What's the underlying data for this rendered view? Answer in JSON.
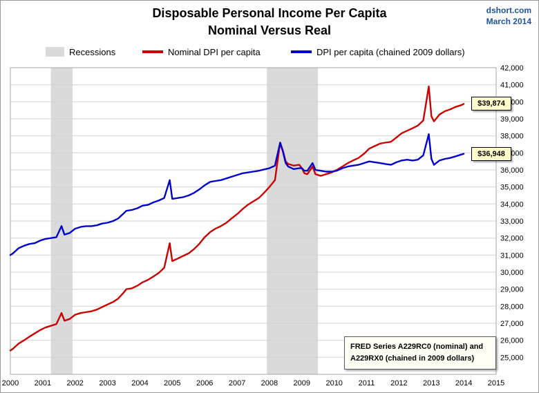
{
  "header": {
    "title_line1": "Disposable Personal Income Per Capita",
    "title_line2": "Nominal Versus Real",
    "source": "dshort.com",
    "date": "March 2014"
  },
  "legend": {
    "recessions_label": "Recessions",
    "nominal_label": "Nominal DPI per capita",
    "real_label": "DPI per capita (chained 2009 dollars)"
  },
  "annotation": {
    "line1": "FRED Series A229RC0 (nominal) and",
    "line2": "A229RX0 (chained in 2009 dollars)"
  },
  "colors": {
    "nominal_red": "#CC0000",
    "real_blue": "#0000CC",
    "recession": "#DADADA",
    "grid": "#D2D2D2",
    "plot_border": "#A6A6A6",
    "callout_bg": "#FFFFCC",
    "credit_blue": "#2152A3"
  },
  "chart_data": {
    "type": "line",
    "title": "Disposable Personal Income Per Capita — Nominal Versus Real",
    "xlabel": "",
    "ylabel": "",
    "xlim": [
      2000,
      2015
    ],
    "ylim": [
      24000,
      42000
    ],
    "x_ticks": [
      2000,
      2001,
      2002,
      2003,
      2004,
      2005,
      2006,
      2007,
      2008,
      2009,
      2010,
      2011,
      2012,
      2013,
      2014,
      2015
    ],
    "y_ticks": [
      25000,
      26000,
      27000,
      28000,
      29000,
      30000,
      31000,
      32000,
      33000,
      34000,
      35000,
      36000,
      37000,
      38000,
      39000,
      40000,
      41000,
      42000
    ],
    "grid": true,
    "legend_position": "top",
    "y_axis_side": "right",
    "recessions": [
      [
        2001.25,
        2001.92
      ],
      [
        2007.92,
        2009.5
      ]
    ],
    "series": [
      {
        "name": "Nominal DPI per capita",
        "color": "#CC0000",
        "callout": {
          "text": "$39,874",
          "value": 39874
        },
        "points": [
          [
            2000.0,
            25400
          ],
          [
            2000.08,
            25500
          ],
          [
            2000.25,
            25800
          ],
          [
            2000.42,
            26000
          ],
          [
            2000.58,
            26200
          ],
          [
            2000.75,
            26400
          ],
          [
            2000.92,
            26600
          ],
          [
            2001.08,
            26750
          ],
          [
            2001.25,
            26850
          ],
          [
            2001.42,
            26950
          ],
          [
            2001.58,
            27600
          ],
          [
            2001.67,
            27150
          ],
          [
            2001.83,
            27250
          ],
          [
            2002.0,
            27500
          ],
          [
            2002.17,
            27600
          ],
          [
            2002.33,
            27650
          ],
          [
            2002.5,
            27700
          ],
          [
            2002.67,
            27800
          ],
          [
            2002.83,
            27950
          ],
          [
            2003.0,
            28100
          ],
          [
            2003.17,
            28250
          ],
          [
            2003.33,
            28450
          ],
          [
            2003.5,
            28800
          ],
          [
            2003.58,
            29000
          ],
          [
            2003.75,
            29050
          ],
          [
            2003.92,
            29200
          ],
          [
            2004.08,
            29400
          ],
          [
            2004.25,
            29550
          ],
          [
            2004.42,
            29750
          ],
          [
            2004.58,
            29950
          ],
          [
            2004.75,
            30250
          ],
          [
            2004.92,
            31700
          ],
          [
            2005.0,
            30650
          ],
          [
            2005.17,
            30800
          ],
          [
            2005.33,
            30950
          ],
          [
            2005.5,
            31100
          ],
          [
            2005.67,
            31350
          ],
          [
            2005.83,
            31650
          ],
          [
            2006.0,
            32050
          ],
          [
            2006.17,
            32350
          ],
          [
            2006.33,
            32550
          ],
          [
            2006.5,
            32700
          ],
          [
            2006.67,
            32900
          ],
          [
            2006.83,
            33150
          ],
          [
            2007.0,
            33400
          ],
          [
            2007.17,
            33700
          ],
          [
            2007.33,
            33950
          ],
          [
            2007.5,
            34150
          ],
          [
            2007.67,
            34350
          ],
          [
            2007.83,
            34650
          ],
          [
            2008.0,
            35000
          ],
          [
            2008.17,
            35400
          ],
          [
            2008.33,
            37600
          ],
          [
            2008.42,
            37100
          ],
          [
            2008.5,
            36500
          ],
          [
            2008.58,
            36350
          ],
          [
            2008.75,
            36250
          ],
          [
            2008.92,
            36300
          ],
          [
            2009.0,
            36100
          ],
          [
            2009.08,
            35800
          ],
          [
            2009.17,
            35750
          ],
          [
            2009.33,
            36200
          ],
          [
            2009.42,
            35750
          ],
          [
            2009.58,
            35650
          ],
          [
            2009.75,
            35750
          ],
          [
            2009.92,
            35850
          ],
          [
            2010.08,
            36000
          ],
          [
            2010.25,
            36200
          ],
          [
            2010.42,
            36400
          ],
          [
            2010.58,
            36550
          ],
          [
            2010.75,
            36700
          ],
          [
            2010.92,
            36950
          ],
          [
            2011.08,
            37250
          ],
          [
            2011.25,
            37400
          ],
          [
            2011.42,
            37550
          ],
          [
            2011.58,
            37600
          ],
          [
            2011.75,
            37650
          ],
          [
            2011.92,
            37900
          ],
          [
            2012.08,
            38150
          ],
          [
            2012.25,
            38300
          ],
          [
            2012.42,
            38450
          ],
          [
            2012.58,
            38600
          ],
          [
            2012.75,
            38900
          ],
          [
            2012.92,
            40900
          ],
          [
            2013.0,
            39150
          ],
          [
            2013.08,
            38850
          ],
          [
            2013.25,
            39250
          ],
          [
            2013.42,
            39450
          ],
          [
            2013.58,
            39550
          ],
          [
            2013.75,
            39700
          ],
          [
            2013.92,
            39800
          ],
          [
            2014.0,
            39874
          ]
        ]
      },
      {
        "name": "DPI per capita (chained 2009 dollars)",
        "color": "#0000CC",
        "callout": {
          "text": "$36,948",
          "value": 36948
        },
        "points": [
          [
            2000.0,
            31000
          ],
          [
            2000.08,
            31100
          ],
          [
            2000.25,
            31400
          ],
          [
            2000.42,
            31550
          ],
          [
            2000.58,
            31650
          ],
          [
            2000.75,
            31700
          ],
          [
            2000.92,
            31850
          ],
          [
            2001.08,
            31950
          ],
          [
            2001.25,
            32000
          ],
          [
            2001.42,
            32050
          ],
          [
            2001.58,
            32700
          ],
          [
            2001.67,
            32200
          ],
          [
            2001.83,
            32300
          ],
          [
            2002.0,
            32550
          ],
          [
            2002.17,
            32650
          ],
          [
            2002.33,
            32700
          ],
          [
            2002.5,
            32700
          ],
          [
            2002.67,
            32750
          ],
          [
            2002.83,
            32850
          ],
          [
            2003.0,
            32900
          ],
          [
            2003.17,
            33000
          ],
          [
            2003.33,
            33150
          ],
          [
            2003.5,
            33450
          ],
          [
            2003.58,
            33600
          ],
          [
            2003.75,
            33650
          ],
          [
            2003.92,
            33750
          ],
          [
            2004.08,
            33900
          ],
          [
            2004.25,
            33950
          ],
          [
            2004.42,
            34100
          ],
          [
            2004.58,
            34200
          ],
          [
            2004.75,
            34350
          ],
          [
            2004.92,
            35400
          ],
          [
            2005.0,
            34300
          ],
          [
            2005.17,
            34350
          ],
          [
            2005.33,
            34400
          ],
          [
            2005.5,
            34500
          ],
          [
            2005.67,
            34650
          ],
          [
            2005.83,
            34850
          ],
          [
            2006.0,
            35100
          ],
          [
            2006.17,
            35300
          ],
          [
            2006.33,
            35350
          ],
          [
            2006.5,
            35400
          ],
          [
            2006.67,
            35500
          ],
          [
            2006.83,
            35600
          ],
          [
            2007.0,
            35700
          ],
          [
            2007.17,
            35800
          ],
          [
            2007.33,
            35850
          ],
          [
            2007.5,
            35900
          ],
          [
            2007.67,
            35950
          ],
          [
            2008.0,
            36100
          ],
          [
            2008.17,
            36250
          ],
          [
            2008.33,
            37600
          ],
          [
            2008.42,
            37050
          ],
          [
            2008.5,
            36400
          ],
          [
            2008.58,
            36200
          ],
          [
            2008.75,
            36050
          ],
          [
            2008.92,
            36100
          ],
          [
            2009.0,
            36100
          ],
          [
            2009.08,
            35950
          ],
          [
            2009.17,
            35950
          ],
          [
            2009.33,
            36400
          ],
          [
            2009.42,
            36000
          ],
          [
            2009.58,
            35950
          ],
          [
            2009.75,
            35900
          ],
          [
            2009.92,
            35900
          ],
          [
            2010.08,
            35950
          ],
          [
            2010.25,
            36100
          ],
          [
            2010.42,
            36200
          ],
          [
            2010.58,
            36250
          ],
          [
            2010.75,
            36300
          ],
          [
            2010.92,
            36400
          ],
          [
            2011.08,
            36500
          ],
          [
            2011.25,
            36450
          ],
          [
            2011.42,
            36400
          ],
          [
            2011.58,
            36350
          ],
          [
            2011.75,
            36300
          ],
          [
            2011.92,
            36450
          ],
          [
            2012.08,
            36550
          ],
          [
            2012.25,
            36600
          ],
          [
            2012.42,
            36550
          ],
          [
            2012.58,
            36600
          ],
          [
            2012.75,
            36850
          ],
          [
            2012.92,
            38100
          ],
          [
            2013.0,
            36650
          ],
          [
            2013.08,
            36300
          ],
          [
            2013.25,
            36550
          ],
          [
            2013.42,
            36650
          ],
          [
            2013.58,
            36700
          ],
          [
            2013.75,
            36800
          ],
          [
            2013.92,
            36900
          ],
          [
            2014.0,
            36948
          ]
        ]
      }
    ]
  }
}
